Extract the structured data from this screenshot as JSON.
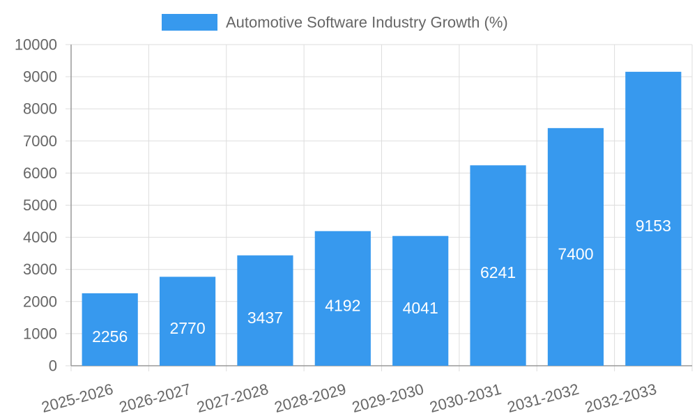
{
  "chart_data": {
    "type": "bar",
    "title": "",
    "xlabel": "",
    "ylabel": "",
    "categories": [
      "2025-2026",
      "2026-2027",
      "2027-2028",
      "2028-2029",
      "2029-2030",
      "2030-2031",
      "2031-2032",
      "2032-2033"
    ],
    "series": [
      {
        "name": "Automotive Software Industry Growth (%)",
        "values": [
          2256,
          2770,
          3437,
          4192,
          4041,
          6241,
          7400,
          9153
        ],
        "color": "#3799ee"
      }
    ],
    "ylim": [
      0,
      10000
    ],
    "yticks": [
      0,
      1000,
      2000,
      3000,
      4000,
      5000,
      6000,
      7000,
      8000,
      9000,
      10000
    ],
    "grid": true,
    "legend_position": "top-center",
    "data_labels": true,
    "colors": {
      "bar": "#3799ee",
      "grid": "#dddddd",
      "axis": "#999999",
      "tick_text": "#666666",
      "label_text": "#ffffff"
    }
  }
}
